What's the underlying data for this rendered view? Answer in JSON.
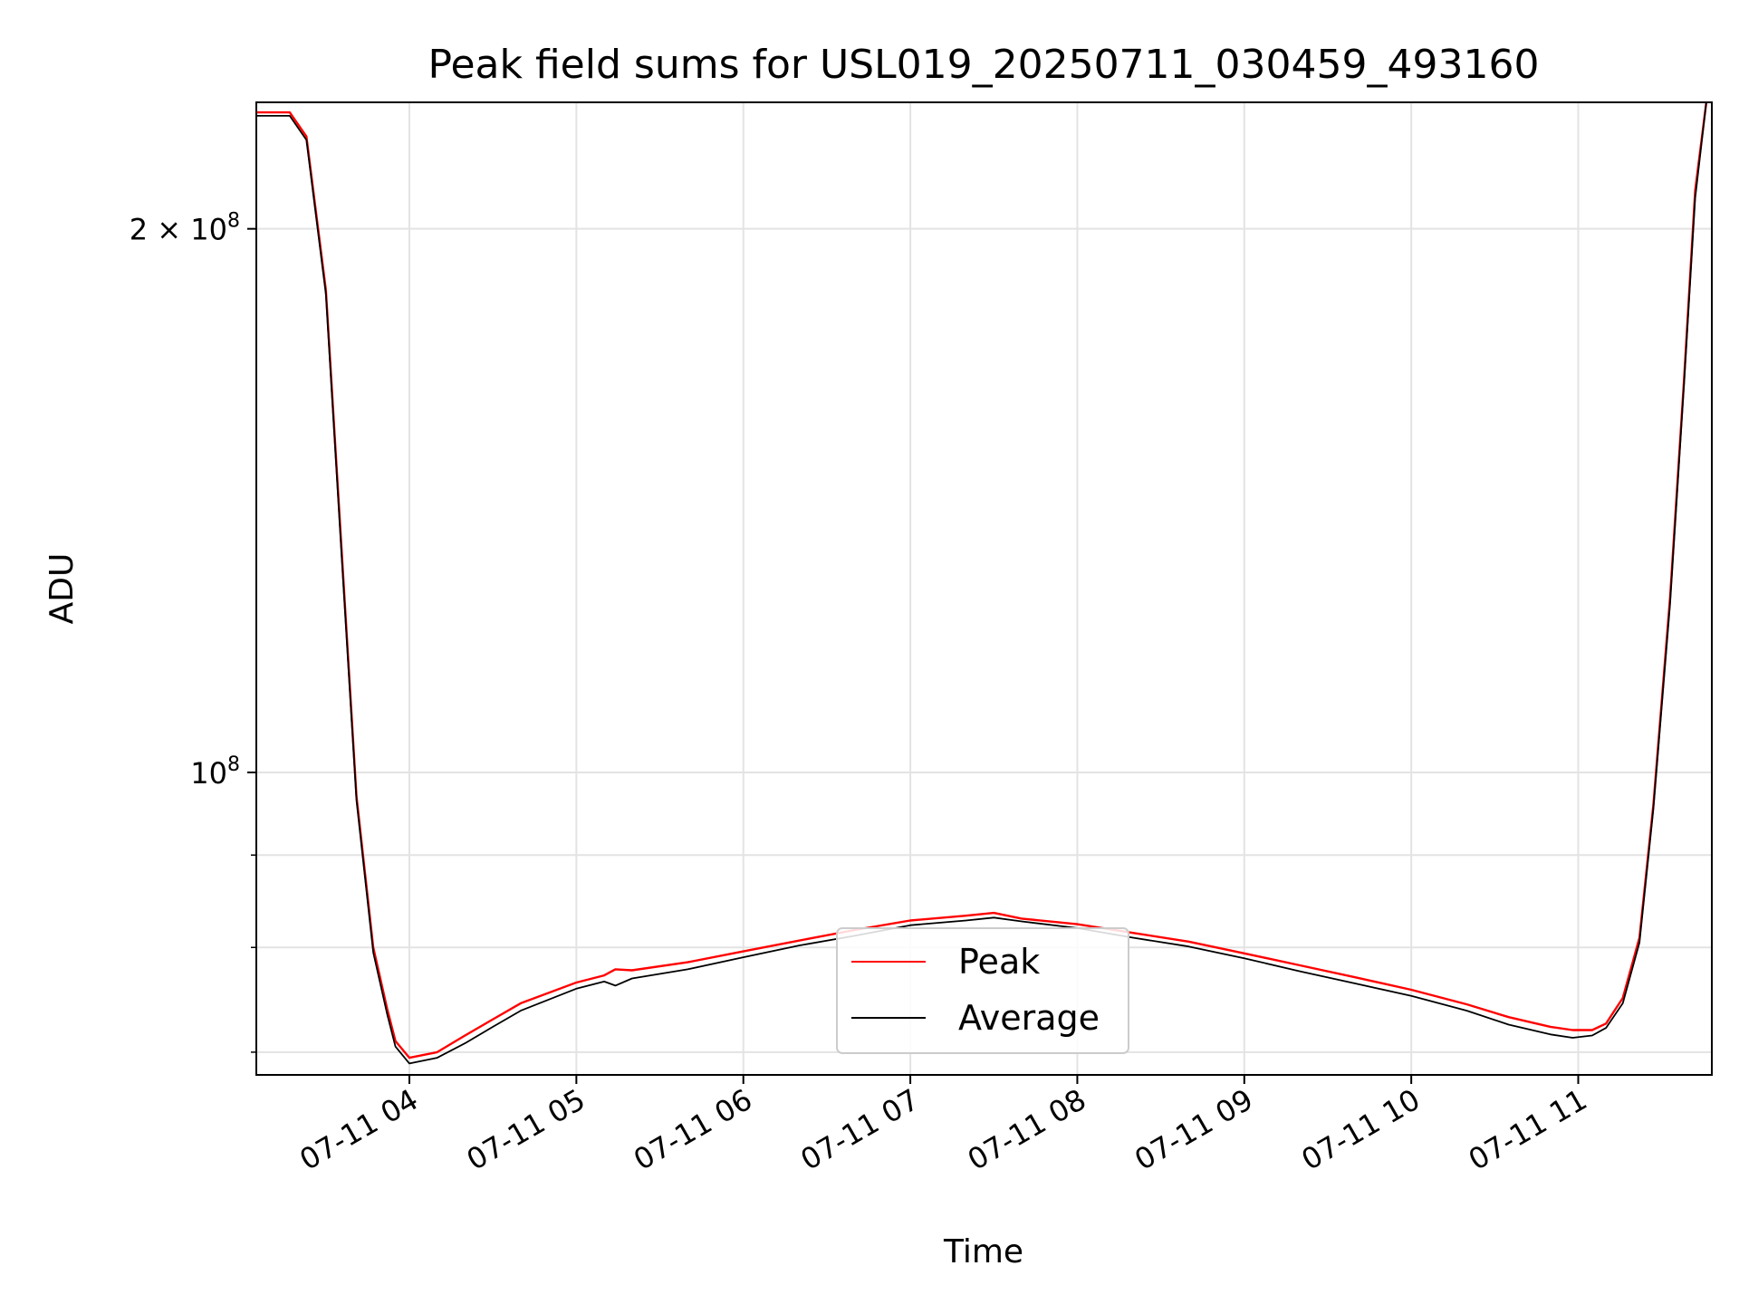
{
  "chart_data": {
    "type": "line",
    "title": "Peak field sums for USL019_20250711_030459_493160",
    "xlabel": "Time",
    "ylabel": "ADU",
    "y_scale": "log",
    "ylim": [
      68000000,
      235000000
    ],
    "xlim": [
      "2025-07-11 03:05",
      "2025-07-11 11:48"
    ],
    "grid": true,
    "legend_position": "lower-center",
    "x_ticks": [
      {
        "label": "07-11 04",
        "time": "2025-07-11 04:00"
      },
      {
        "label": "07-11 05",
        "time": "2025-07-11 05:00"
      },
      {
        "label": "07-11 06",
        "time": "2025-07-11 06:00"
      },
      {
        "label": "07-11 07",
        "time": "2025-07-11 07:00"
      },
      {
        "label": "07-11 08",
        "time": "2025-07-11 08:00"
      },
      {
        "label": "07-11 09",
        "time": "2025-07-11 09:00"
      },
      {
        "label": "07-11 10",
        "time": "2025-07-11 10:00"
      },
      {
        "label": "07-11 11",
        "time": "2025-07-11 11:00"
      }
    ],
    "y_ticks_major": [
      {
        "value": 100000000,
        "base": "10",
        "exp": "8",
        "prefix": ""
      },
      {
        "value": 200000000,
        "base": "10",
        "exp": "8",
        "prefix": "2 × "
      }
    ],
    "y_ticks_minor": [
      70000000,
      80000000,
      90000000
    ],
    "series": [
      {
        "name": "Peak",
        "color": "#ff0000",
        "x": [
          "2025-07-11 03:05",
          "2025-07-11 03:17",
          "2025-07-11 03:23",
          "2025-07-11 03:30",
          "2025-07-11 03:36",
          "2025-07-11 03:41",
          "2025-07-11 03:47",
          "2025-07-11 03:52",
          "2025-07-11 03:55",
          "2025-07-11 04:00",
          "2025-07-11 04:10",
          "2025-07-11 04:20",
          "2025-07-11 04:30",
          "2025-07-11 04:40",
          "2025-07-11 05:00",
          "2025-07-11 05:10",
          "2025-07-11 05:14",
          "2025-07-11 05:20",
          "2025-07-11 05:40",
          "2025-07-11 06:00",
          "2025-07-11 06:20",
          "2025-07-11 06:40",
          "2025-07-11 07:00",
          "2025-07-11 07:20",
          "2025-07-11 07:30",
          "2025-07-11 07:40",
          "2025-07-11 08:00",
          "2025-07-11 08:20",
          "2025-07-11 08:40",
          "2025-07-11 09:00",
          "2025-07-11 09:20",
          "2025-07-11 09:40",
          "2025-07-11 10:00",
          "2025-07-11 10:20",
          "2025-07-11 10:35",
          "2025-07-11 10:50",
          "2025-07-11 10:58",
          "2025-07-11 11:05",
          "2025-07-11 11:10",
          "2025-07-11 11:16",
          "2025-07-11 11:22",
          "2025-07-11 11:27",
          "2025-07-11 11:33",
          "2025-07-11 11:38",
          "2025-07-11 11:42",
          "2025-07-11 11:46"
        ],
        "values": [
          232000000,
          232000000,
          225000000,
          185000000,
          130000000,
          97000000,
          80000000,
          74000000,
          71000000,
          69500000,
          70000000,
          71500000,
          73000000,
          74500000,
          76500000,
          77200000,
          77800000,
          77700000,
          78500000,
          79600000,
          80700000,
          81800000,
          82800000,
          83300000,
          83600000,
          83000000,
          82400000,
          81500000,
          80600000,
          79400000,
          78200000,
          77000000,
          75800000,
          74400000,
          73200000,
          72300000,
          72000000,
          72000000,
          72600000,
          75000000,
          81000000,
          96000000,
          125000000,
          165000000,
          210000000,
          235000000
        ]
      },
      {
        "name": "Average",
        "color": "#000000",
        "x": [
          "2025-07-11 03:05",
          "2025-07-11 03:17",
          "2025-07-11 03:23",
          "2025-07-11 03:30",
          "2025-07-11 03:36",
          "2025-07-11 03:41",
          "2025-07-11 03:47",
          "2025-07-11 03:52",
          "2025-07-11 03:55",
          "2025-07-11 04:00",
          "2025-07-11 04:10",
          "2025-07-11 04:20",
          "2025-07-11 04:30",
          "2025-07-11 04:40",
          "2025-07-11 05:00",
          "2025-07-11 05:10",
          "2025-07-11 05:14",
          "2025-07-11 05:20",
          "2025-07-11 05:40",
          "2025-07-11 06:00",
          "2025-07-11 06:20",
          "2025-07-11 06:40",
          "2025-07-11 07:00",
          "2025-07-11 07:20",
          "2025-07-11 07:30",
          "2025-07-11 07:40",
          "2025-07-11 08:00",
          "2025-07-11 08:20",
          "2025-07-11 08:40",
          "2025-07-11 09:00",
          "2025-07-11 09:20",
          "2025-07-11 09:40",
          "2025-07-11 10:00",
          "2025-07-11 10:20",
          "2025-07-11 10:35",
          "2025-07-11 10:50",
          "2025-07-11 10:58",
          "2025-07-11 11:05",
          "2025-07-11 11:10",
          "2025-07-11 11:16",
          "2025-07-11 11:22",
          "2025-07-11 11:27",
          "2025-07-11 11:33",
          "2025-07-11 11:38",
          "2025-07-11 11:42",
          "2025-07-11 11:46"
        ],
        "values": [
          231000000,
          231000000,
          224000000,
          184000000,
          129000000,
          96500000,
          79500000,
          73500000,
          70500000,
          69000000,
          69500000,
          70800000,
          72300000,
          73800000,
          75900000,
          76600000,
          76200000,
          76900000,
          77800000,
          79000000,
          80200000,
          81200000,
          82300000,
          82800000,
          83100000,
          82700000,
          82000000,
          81000000,
          80100000,
          78900000,
          77600000,
          76400000,
          75200000,
          73800000,
          72500000,
          71600000,
          71300000,
          71500000,
          72200000,
          74500000,
          80500000,
          95500000,
          124000000,
          164000000,
          208000000,
          235000000
        ]
      }
    ]
  }
}
